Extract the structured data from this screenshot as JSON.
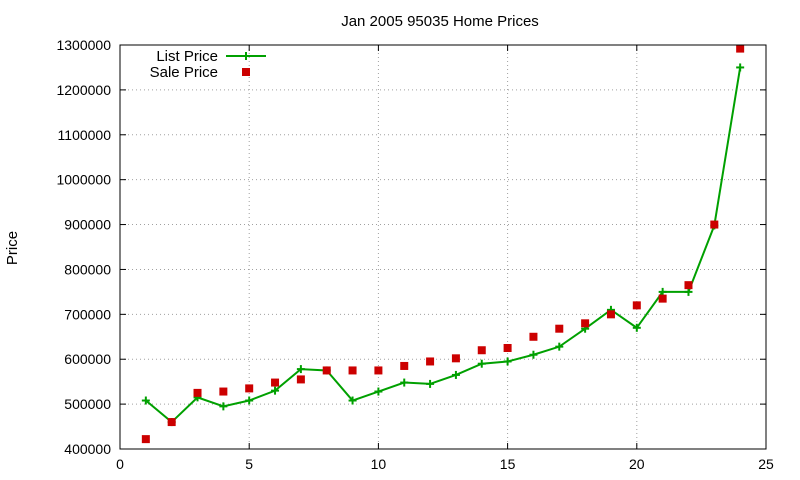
{
  "chart_data": {
    "type": "line",
    "title": "Jan 2005 95035 Home Prices",
    "xlabel": "",
    "ylabel": "Price",
    "xlim": [
      0,
      25
    ],
    "ylim": [
      400000,
      1300000
    ],
    "x_ticks": [
      0,
      5,
      10,
      15,
      20,
      25
    ],
    "y_ticks": [
      400000,
      500000,
      600000,
      700000,
      800000,
      900000,
      1000000,
      1100000,
      1200000,
      1300000
    ],
    "grid": true,
    "legend_position": "top-left",
    "series": [
      {
        "name": "List Price",
        "style": "linespoints",
        "marker": "plus",
        "color": "#00a000",
        "x": [
          1,
          2,
          3,
          4,
          5,
          6,
          7,
          8,
          9,
          10,
          11,
          12,
          13,
          14,
          15,
          16,
          17,
          18,
          19,
          20,
          21,
          22,
          23,
          24
        ],
        "y": [
          508000,
          460000,
          515000,
          495000,
          508000,
          530000,
          578000,
          575000,
          508000,
          528000,
          548000,
          545000,
          565000,
          590000,
          595000,
          610000,
          628000,
          668000,
          710000,
          670000,
          750000,
          750000,
          898000,
          1250000
        ]
      },
      {
        "name": "Sale Price",
        "style": "points",
        "marker": "square",
        "color": "#cc0000",
        "x": [
          1,
          2,
          3,
          4,
          5,
          6,
          7,
          8,
          9,
          10,
          11,
          12,
          13,
          14,
          15,
          16,
          17,
          18,
          19,
          20,
          21,
          22,
          23,
          24
        ],
        "y": [
          422000,
          460000,
          525000,
          528000,
          535000,
          548000,
          555000,
          575000,
          575000,
          575000,
          585000,
          595000,
          602000,
          620000,
          625000,
          650000,
          668000,
          680000,
          700000,
          720000,
          735000,
          765000,
          900000,
          1292000
        ]
      }
    ]
  }
}
